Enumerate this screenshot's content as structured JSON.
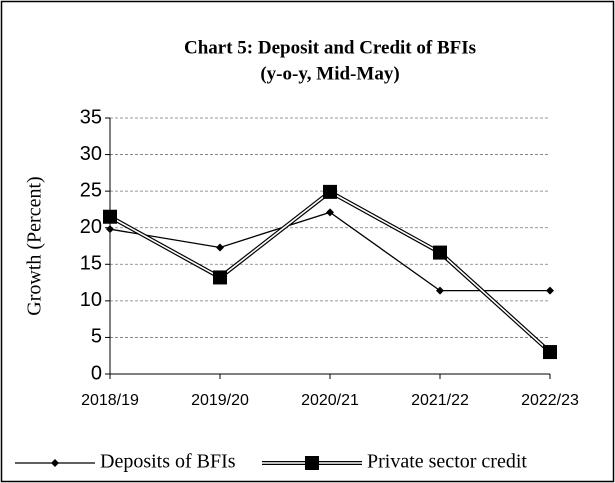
{
  "chart_data": {
    "type": "line",
    "title": "Chart 5:  Deposit and Credit of BFIs",
    "subtitle": "(y-o-y, Mid-May)",
    "y_label": "Growth (Percent)",
    "categories": [
      "2018/19",
      "2019/20",
      "2020/21",
      "2021/22",
      "2022/23"
    ],
    "series": [
      {
        "name": "Deposits of BFIs",
        "color": "#000000",
        "marker": "diamond",
        "values": [
          19.8,
          17.3,
          22.1,
          11.4,
          11.4
        ]
      },
      {
        "name": "Private sector credit",
        "color": "#000000",
        "marker": "square",
        "values": [
          21.5,
          13.2,
          24.9,
          16.6,
          3.0
        ]
      }
    ],
    "ylim": [
      0,
      35
    ],
    "yticks": [
      0,
      5,
      10,
      15,
      20,
      25,
      30,
      35
    ],
    "grid": true,
    "legend": "bottom"
  }
}
